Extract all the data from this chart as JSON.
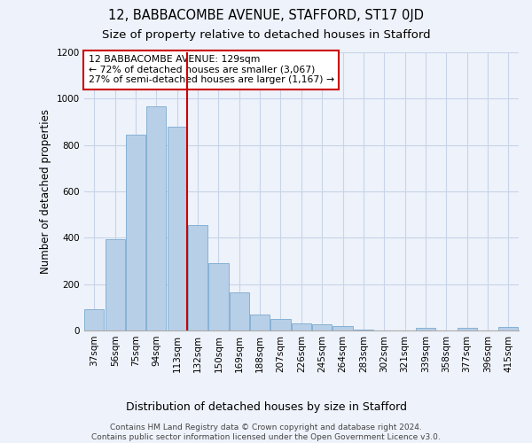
{
  "title": "12, BABBACOMBE AVENUE, STAFFORD, ST17 0JD",
  "subtitle": "Size of property relative to detached houses in Stafford",
  "xlabel": "Distribution of detached houses by size in Stafford",
  "ylabel": "Number of detached properties",
  "categories": [
    "37sqm",
    "56sqm",
    "75sqm",
    "94sqm",
    "113sqm",
    "132sqm",
    "150sqm",
    "169sqm",
    "188sqm",
    "207sqm",
    "226sqm",
    "245sqm",
    "264sqm",
    "283sqm",
    "302sqm",
    "321sqm",
    "339sqm",
    "358sqm",
    "377sqm",
    "396sqm",
    "415sqm"
  ],
  "values": [
    90,
    395,
    845,
    965,
    880,
    455,
    290,
    163,
    70,
    50,
    32,
    25,
    18,
    5,
    0,
    0,
    10,
    0,
    10,
    0,
    15
  ],
  "bar_color": "#b8cfe8",
  "bar_edge_color": "#7aaad0",
  "grid_color": "#c8d4e8",
  "background_color": "#eef2fa",
  "vline_color": "#cc0000",
  "annotation_text": "12 BABBACOMBE AVENUE: 129sqm\n← 72% of detached houses are smaller (3,067)\n27% of semi-detached houses are larger (1,167) →",
  "annotation_box_color": "white",
  "annotation_box_edge_color": "#cc0000",
  "footer_line1": "Contains HM Land Registry data © Crown copyright and database right 2024.",
  "footer_line2": "Contains public sector information licensed under the Open Government Licence v3.0.",
  "ylim": [
    0,
    1200
  ],
  "yticks": [
    0,
    200,
    400,
    600,
    800,
    1000,
    1200
  ],
  "title_fontsize": 10.5,
  "subtitle_fontsize": 9.5,
  "xlabel_fontsize": 9,
  "ylabel_fontsize": 8.5,
  "tick_fontsize": 7.5,
  "annotation_fontsize": 7.8,
  "footer_fontsize": 6.5
}
